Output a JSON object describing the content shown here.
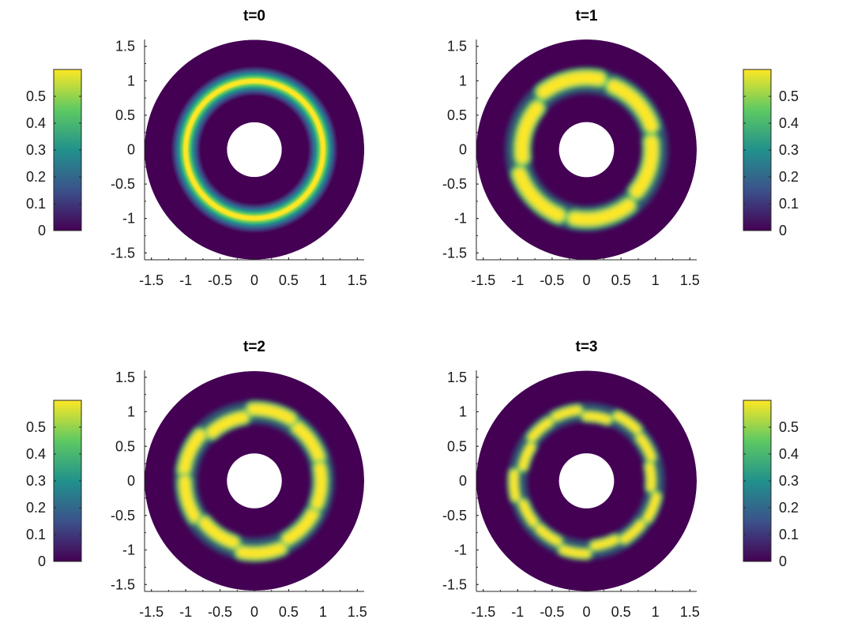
{
  "chart_data": [
    {
      "type": "heatmap",
      "title": "t=0",
      "xlim": [
        -1.6,
        1.6
      ],
      "ylim": [
        -1.6,
        1.6
      ],
      "xticks": [
        "-1.5",
        "-1",
        "-0.5",
        "0",
        "0.5",
        "1",
        "1.5"
      ],
      "yticks": [
        "1.5",
        "1",
        "0.5",
        "0",
        "-0.5",
        "-1",
        "-1.5"
      ],
      "domain": {
        "shape": "annulus",
        "inner_radius": 0.4,
        "outer_radius": 1.6
      },
      "ring": {
        "radius": 1.0,
        "peak": 0.6,
        "pattern": "smooth continuous ring",
        "lobes": 0
      },
      "colorbar": {
        "side": "left",
        "ticks": [
          "0",
          "0.1",
          "0.2",
          "0.3",
          "0.4",
          "0.5"
        ],
        "range": [
          0,
          0.6
        ]
      },
      "colormap": [
        "#440154",
        "#3b528b",
        "#21918c",
        "#5ec962",
        "#fde725"
      ]
    },
    {
      "type": "heatmap",
      "title": "t=1",
      "xlim": [
        -1.6,
        1.6
      ],
      "ylim": [
        -1.6,
        1.6
      ],
      "xticks": [
        "-1.5",
        "-1",
        "-0.5",
        "0",
        "0.5",
        "1",
        "1.5"
      ],
      "yticks": [
        "1.5",
        "1",
        "0.5",
        "0",
        "-0.5",
        "-1",
        "-1.5"
      ],
      "domain": {
        "shape": "annulus",
        "inner_radius": 0.4,
        "outer_radius": 1.6
      },
      "ring": {
        "radius": 1.0,
        "peak": 0.6,
        "pattern": "ring broken into elongated blobs",
        "lobes": 6
      },
      "colorbar": {
        "side": "right",
        "ticks": [
          "0",
          "0.1",
          "0.2",
          "0.3",
          "0.4",
          "0.5"
        ],
        "range": [
          0,
          0.6
        ]
      },
      "colormap": [
        "#440154",
        "#3b528b",
        "#21918c",
        "#5ec962",
        "#fde725"
      ]
    },
    {
      "type": "heatmap",
      "title": "t=2",
      "xlim": [
        -1.6,
        1.6
      ],
      "ylim": [
        -1.6,
        1.6
      ],
      "xticks": [
        "-1.5",
        "-1",
        "-0.5",
        "0",
        "0.5",
        "1",
        "1.5"
      ],
      "yticks": [
        "1.5",
        "1",
        "0.5",
        "0",
        "-0.5",
        "-1",
        "-1.5"
      ],
      "domain": {
        "shape": "annulus",
        "inner_radius": 0.4,
        "outer_radius": 1.6
      },
      "ring": {
        "radius": 1.0,
        "peak": 0.6,
        "pattern": "ring broken into blobs",
        "lobes": 9
      },
      "colorbar": {
        "side": "left",
        "ticks": [
          "0",
          "0.1",
          "0.2",
          "0.3",
          "0.4",
          "0.5"
        ],
        "range": [
          0,
          0.6
        ]
      },
      "colormap": [
        "#440154",
        "#3b528b",
        "#21918c",
        "#5ec962",
        "#fde725"
      ]
    },
    {
      "type": "heatmap",
      "title": "t=3",
      "xlim": [
        -1.6,
        1.6
      ],
      "ylim": [
        -1.6,
        1.6
      ],
      "xticks": [
        "-1.5",
        "-1",
        "-0.5",
        "0",
        "0.5",
        "1",
        "1.5"
      ],
      "yticks": [
        "1.5",
        "1",
        "0.5",
        "0",
        "-0.5",
        "-1",
        "-1.5"
      ],
      "domain": {
        "shape": "annulus",
        "inner_radius": 0.4,
        "outer_radius": 1.6
      },
      "ring": {
        "radius": 1.0,
        "peak": 0.6,
        "pattern": "ring broken into many small blobs",
        "lobes": 14
      },
      "colorbar": {
        "side": "right",
        "ticks": [
          "0",
          "0.1",
          "0.2",
          "0.3",
          "0.4",
          "0.5"
        ],
        "range": [
          0,
          0.6
        ]
      },
      "colormap": [
        "#440154",
        "#3b528b",
        "#21918c",
        "#5ec962",
        "#fde725"
      ]
    }
  ]
}
